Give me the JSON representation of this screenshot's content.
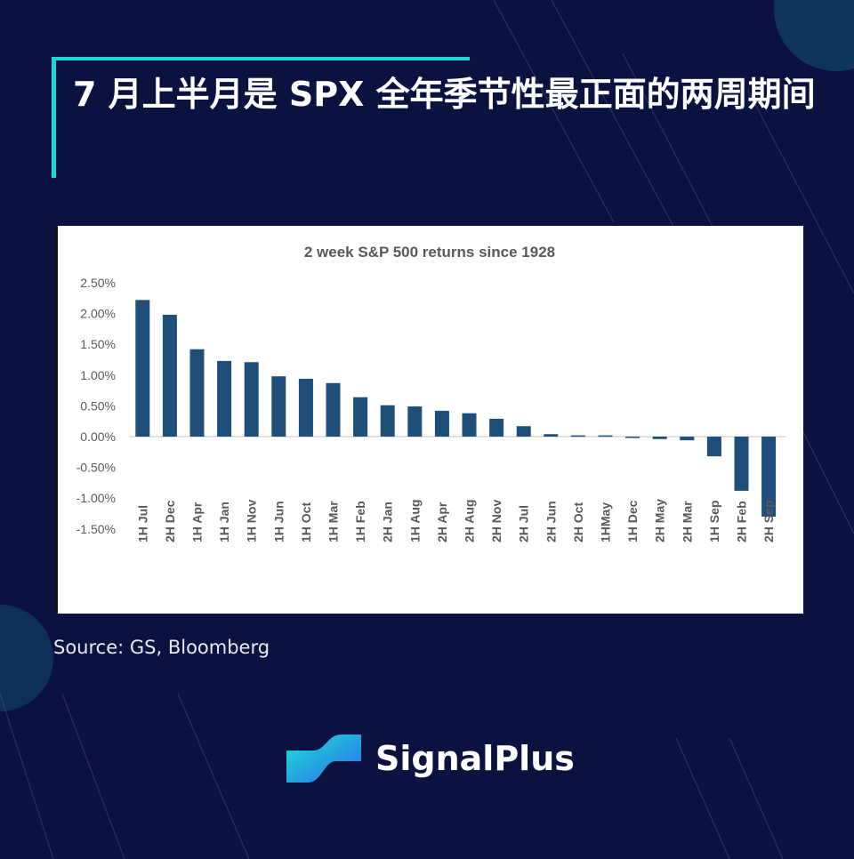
{
  "header": {
    "title": "7 月上半月是 SPX 全年季节性最正面的两周期间"
  },
  "source": "Source: GS, Bloomberg",
  "brand": {
    "name": "SignalPlus"
  },
  "colors": {
    "background": "#0b1240",
    "accent": "#1fd6d6",
    "bar": "#1f4e79"
  },
  "chart_data": {
    "type": "bar",
    "title": "2 week S&P 500 returns since 1928",
    "xlabel": "",
    "ylabel": "",
    "ylim": [
      -1.5,
      2.5
    ],
    "yticks": [
      "2.50%",
      "2.00%",
      "1.50%",
      "1.00%",
      "0.50%",
      "0.00%",
      "-0.50%",
      "-1.00%",
      "-1.50%"
    ],
    "ytick_values": [
      2.5,
      2.0,
      1.5,
      1.0,
      0.5,
      0.0,
      -0.5,
      -1.0,
      -1.5
    ],
    "grid": false,
    "categories": [
      "1H Jul",
      "2H Dec",
      "1H Apr",
      "1H Jan",
      "1H Nov",
      "1H Jun",
      "1H Oct",
      "1H Mar",
      "1H Feb",
      "2H Jan",
      "1H Aug",
      "2H Apr",
      "2H Aug",
      "2H Nov",
      "2H Jul",
      "2H Jun",
      "2H Oct",
      "1HMay",
      "1H Dec",
      "2H May",
      "2H Mar",
      "1H Sep",
      "2H Feb",
      "2H Sep"
    ],
    "values": [
      2.22,
      1.98,
      1.42,
      1.23,
      1.21,
      0.98,
      0.94,
      0.87,
      0.64,
      0.51,
      0.49,
      0.42,
      0.38,
      0.29,
      0.17,
      0.04,
      0.02,
      0.02,
      -0.02,
      -0.04,
      -0.06,
      -0.32,
      -0.88,
      -1.3
    ]
  }
}
